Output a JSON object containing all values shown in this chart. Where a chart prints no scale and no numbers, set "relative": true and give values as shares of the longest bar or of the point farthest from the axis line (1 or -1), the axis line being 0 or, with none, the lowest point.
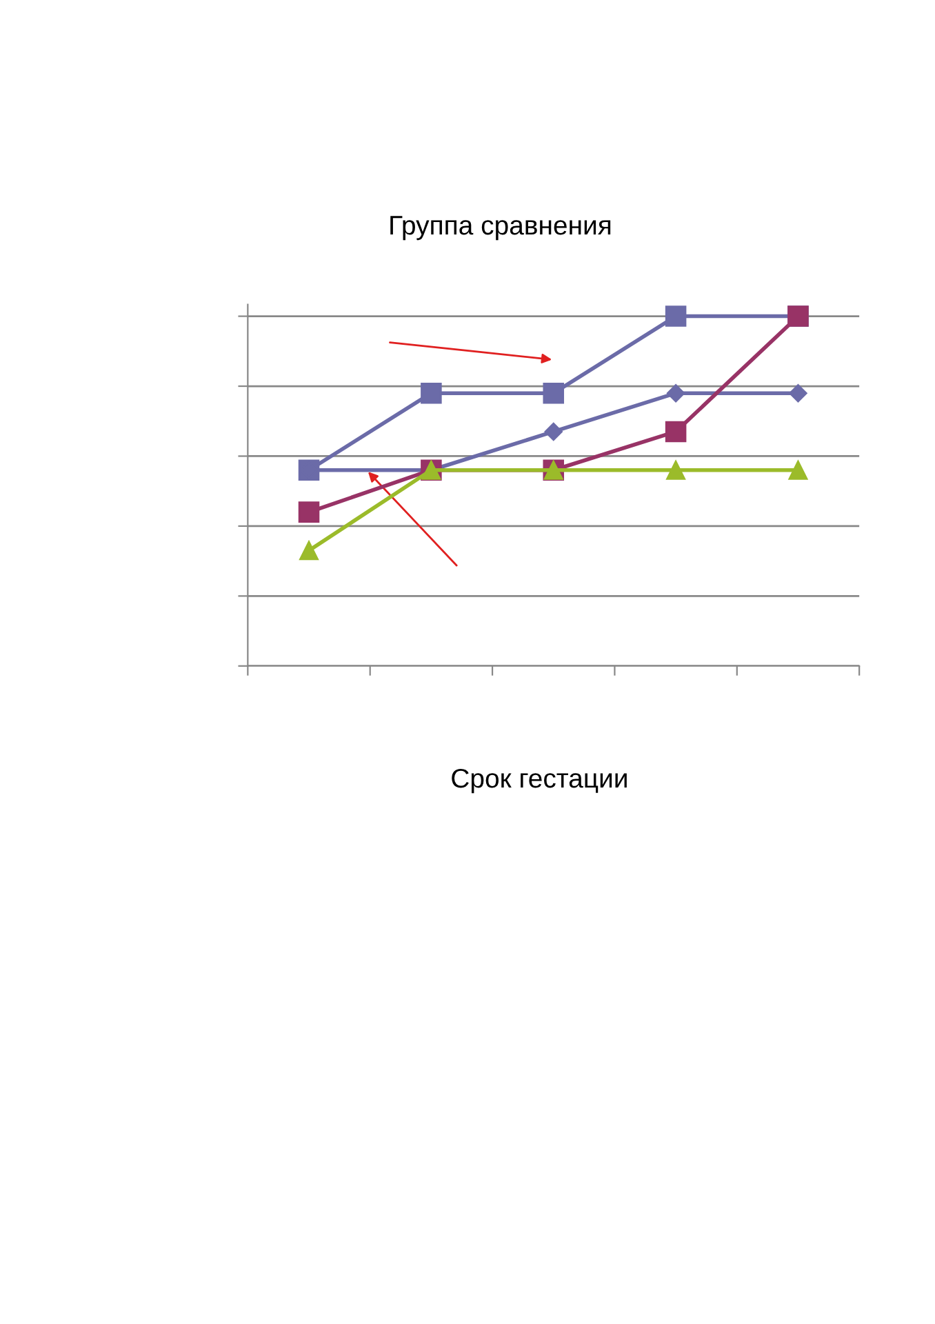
{
  "chart_data": {
    "type": "line",
    "title": "Группа сравнения",
    "xlabel": "Срок гестации",
    "relative": true,
    "grid": "y",
    "categories": [
      null,
      null,
      null,
      null,
      null
    ],
    "series": [
      {
        "color": "#6b6ba8",
        "marker": "square",
        "values": [
          0.56,
          0.78,
          0.78,
          1,
          1
        ]
      },
      {
        "color": "#6b6ba8",
        "marker": "diamond",
        "values": [
          0.56,
          0.56,
          0.67,
          0.78,
          0.78
        ]
      },
      {
        "color": "#983366",
        "marker": "square",
        "values": [
          0.44,
          0.56,
          0.56,
          0.67,
          1
        ]
      },
      {
        "color": "#9bbb2a",
        "marker": "triangle",
        "values": [
          0.33,
          0.56,
          0.56,
          0.56,
          0.56
        ]
      }
    ]
  }
}
